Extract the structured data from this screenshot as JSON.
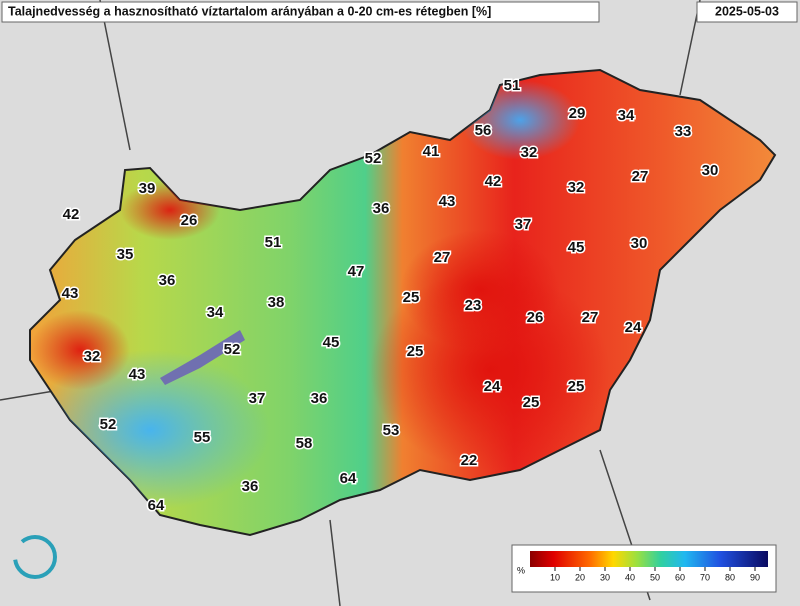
{
  "header": {
    "title": "Talajnedvesség a hasznosítható víztartalom arányában a 0-20 cm-es rétegben [%]",
    "date": "2025-05-03"
  },
  "map": {
    "values": [
      51,
      29,
      34,
      56,
      33,
      52,
      41,
      32,
      42,
      32,
      27,
      30,
      39,
      43,
      36,
      42,
      26,
      37,
      51,
      45,
      30,
      35,
      27,
      47,
      36,
      43,
      25,
      38,
      23,
      34,
      26,
      27,
      24,
      52,
      45,
      32,
      25,
      43,
      24,
      25,
      37,
      36,
      25,
      52,
      53,
      55,
      58,
      22,
      36,
      64,
      64
    ]
  },
  "legend": {
    "unit": "%",
    "ticks": [
      10,
      20,
      30,
      40,
      50,
      60,
      70,
      80,
      90
    ]
  }
}
